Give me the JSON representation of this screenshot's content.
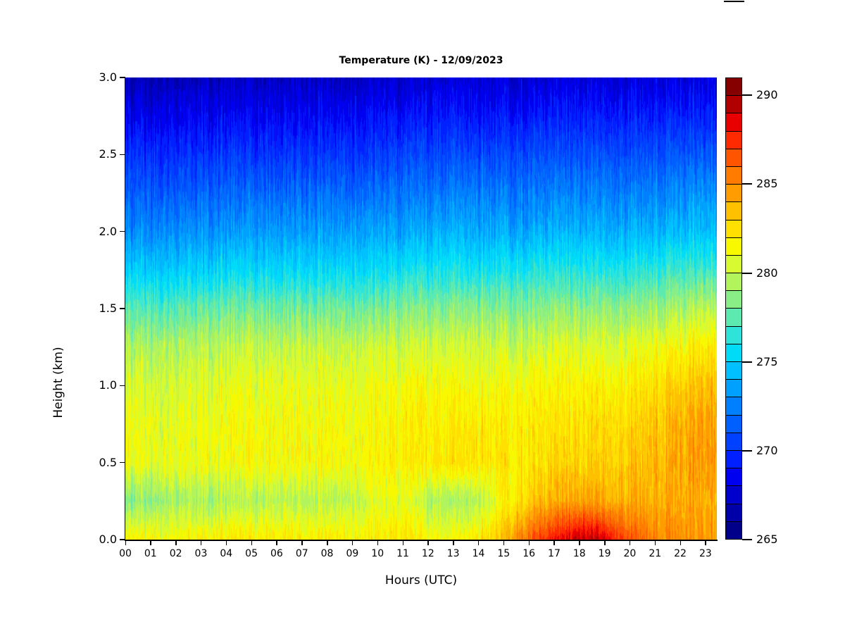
{
  "page": {
    "background": "#ffffff"
  },
  "chart_data": {
    "type": "heatmap",
    "title": "Temperature (K) - 12/09/2023",
    "xlabel": "Hours (UTC)",
    "ylabel": "Height (km)",
    "x_tick_labels": [
      "00",
      "01",
      "02",
      "03",
      "04",
      "05",
      "06",
      "07",
      "08",
      "09",
      "10",
      "11",
      "12",
      "13",
      "14",
      "15",
      "16",
      "17",
      "18",
      "19",
      "20",
      "21",
      "22",
      "23"
    ],
    "y_tick_labels": [
      "0.0",
      "0.5",
      "1.0",
      "1.5",
      "2.0",
      "2.5",
      "3.0"
    ],
    "x_axis_extent_hours": 23.45,
    "y_domain_km": [
      0,
      3
    ],
    "grid_on": false,
    "legend_position": "right-colorbar",
    "colorbar": {
      "min_K": 265,
      "max_K": 291,
      "step_K": 1,
      "tick_labels": [
        "265",
        "270",
        "275",
        "280",
        "285",
        "290"
      ],
      "palette_low_to_high": [
        "#00008b",
        "#0000a8",
        "#0000cd",
        "#0000f0",
        "#0020ff",
        "#0040ff",
        "#0060ff",
        "#0080ff",
        "#00a0ff",
        "#00c0ff",
        "#00dcf8",
        "#2ee4d8",
        "#5ceab0",
        "#8aee86",
        "#b2f45c",
        "#d8fa30",
        "#f8f800",
        "#ffe000",
        "#ffc000",
        "#ff9c00",
        "#ff7c00",
        "#ff5500",
        "#ff2a00",
        "#e80000",
        "#b00000",
        "#870000"
      ]
    },
    "grid": {
      "hours": [
        0,
        1,
        2,
        3,
        4,
        5,
        6,
        7,
        8,
        9,
        10,
        11,
        12,
        13,
        14,
        15,
        16,
        17,
        18,
        19,
        20,
        21,
        22,
        23,
        24
      ],
      "heights_km_top_to_bottom": [
        3.0,
        2.75,
        2.5,
        2.25,
        2.0,
        1.75,
        1.5,
        1.25,
        1.0,
        0.75,
        0.5,
        0.25,
        0.0
      ],
      "temperature_K": [
        [
          266.8,
          268.3,
          269.8,
          271.3,
          272.8,
          274.8,
          277.3,
          279.4,
          280.4,
          280.9,
          281.0,
          278.2,
          281.6
        ],
        [
          266.9,
          268.4,
          269.9,
          271.4,
          272.9,
          274.9,
          277.4,
          279.5,
          280.5,
          281.0,
          281.0,
          278.8,
          281.6
        ],
        [
          267.0,
          268.5,
          270.0,
          271.5,
          273.0,
          275.0,
          277.5,
          279.5,
          280.5,
          281.0,
          281.1,
          279.3,
          281.7
        ],
        [
          267.0,
          268.5,
          270.0,
          271.5,
          273.1,
          275.1,
          277.7,
          279.7,
          280.7,
          281.1,
          281.1,
          279.2,
          281.8
        ],
        [
          267.1,
          268.6,
          270.1,
          271.6,
          273.2,
          275.3,
          277.8,
          279.8,
          280.8,
          281.2,
          281.2,
          279.4,
          281.9
        ],
        [
          267.1,
          268.6,
          270.1,
          271.7,
          273.3,
          275.4,
          277.9,
          279.9,
          280.9,
          281.3,
          281.3,
          279.6,
          282.0
        ],
        [
          267.2,
          268.7,
          270.2,
          271.8,
          273.3,
          275.4,
          277.9,
          279.9,
          281.0,
          281.4,
          281.4,
          279.8,
          282.1
        ],
        [
          267.2,
          268.7,
          270.2,
          271.8,
          273.4,
          275.5,
          278.0,
          280.0,
          281.0,
          281.4,
          281.4,
          279.7,
          282.0
        ],
        [
          267.3,
          268.8,
          270.3,
          271.9,
          273.4,
          275.5,
          278.0,
          280.0,
          281.0,
          281.4,
          281.4,
          279.6,
          282.0
        ],
        [
          267.3,
          268.8,
          270.3,
          271.9,
          273.5,
          275.6,
          278.1,
          280.1,
          281.1,
          281.5,
          281.5,
          280.0,
          282.0
        ],
        [
          267.4,
          268.9,
          270.4,
          272.0,
          273.5,
          275.6,
          278.1,
          280.1,
          281.1,
          281.5,
          281.6,
          280.6,
          282.0
        ],
        [
          267.4,
          268.9,
          270.4,
          272.0,
          273.6,
          275.7,
          278.2,
          280.2,
          281.2,
          281.6,
          281.8,
          280.9,
          282.1
        ],
        [
          267.6,
          269.1,
          270.6,
          272.2,
          273.8,
          275.9,
          278.3,
          280.3,
          281.4,
          281.9,
          282.1,
          279.6,
          281.6
        ],
        [
          268.0,
          269.5,
          271.0,
          272.6,
          274.2,
          276.3,
          278.6,
          280.5,
          281.6,
          282.2,
          282.5,
          279.2,
          281.6
        ],
        [
          267.8,
          269.3,
          270.8,
          272.4,
          274.0,
          276.1,
          278.5,
          280.4,
          281.5,
          282.1,
          282.3,
          279.9,
          282.2
        ],
        [
          267.7,
          269.2,
          270.7,
          272.3,
          273.9,
          276.0,
          278.4,
          280.3,
          281.4,
          282.0,
          282.2,
          281.6,
          283.4
        ],
        [
          267.7,
          269.2,
          270.7,
          272.3,
          273.9,
          276.0,
          278.4,
          280.3,
          281.4,
          282.0,
          282.3,
          283.0,
          286.0
        ],
        [
          267.8,
          269.2,
          270.8,
          272.4,
          273.9,
          276.1,
          278.5,
          280.4,
          281.5,
          282.1,
          282.6,
          283.8,
          287.8
        ],
        [
          267.8,
          269.3,
          270.8,
          272.4,
          274.0,
          276.1,
          278.5,
          280.5,
          281.6,
          282.3,
          282.8,
          284.2,
          289.2
        ],
        [
          267.8,
          269.3,
          270.9,
          272.5,
          274.0,
          276.2,
          278.6,
          280.6,
          281.8,
          282.5,
          283.0,
          284.2,
          288.6
        ],
        [
          267.9,
          269.4,
          270.9,
          272.5,
          274.1,
          276.3,
          278.7,
          280.8,
          282.0,
          282.8,
          283.3,
          284.0,
          286.6
        ],
        [
          267.9,
          269.4,
          271.0,
          272.6,
          274.2,
          276.5,
          279.0,
          281.2,
          282.5,
          283.3,
          283.8,
          284.0,
          285.2
        ],
        [
          268.0,
          269.5,
          271.1,
          272.8,
          274.4,
          276.8,
          279.3,
          281.6,
          283.0,
          283.8,
          284.2,
          284.1,
          284.8
        ],
        [
          268.0,
          269.5,
          271.2,
          273.0,
          274.6,
          277.0,
          279.6,
          282.0,
          283.6,
          284.3,
          284.5,
          284.1,
          284.6
        ],
        [
          268.0,
          269.6,
          271.2,
          273.0,
          274.6,
          277.0,
          279.7,
          282.2,
          283.9,
          284.5,
          284.6,
          284.2,
          284.6
        ]
      ]
    },
    "noise": {
      "seed": 42,
      "column_amp_K": 1.0,
      "wave_amp_K": 0.55,
      "wave2_amp_K": 0.3
    }
  },
  "decorations": {
    "top_artifact_color": "#000000"
  }
}
